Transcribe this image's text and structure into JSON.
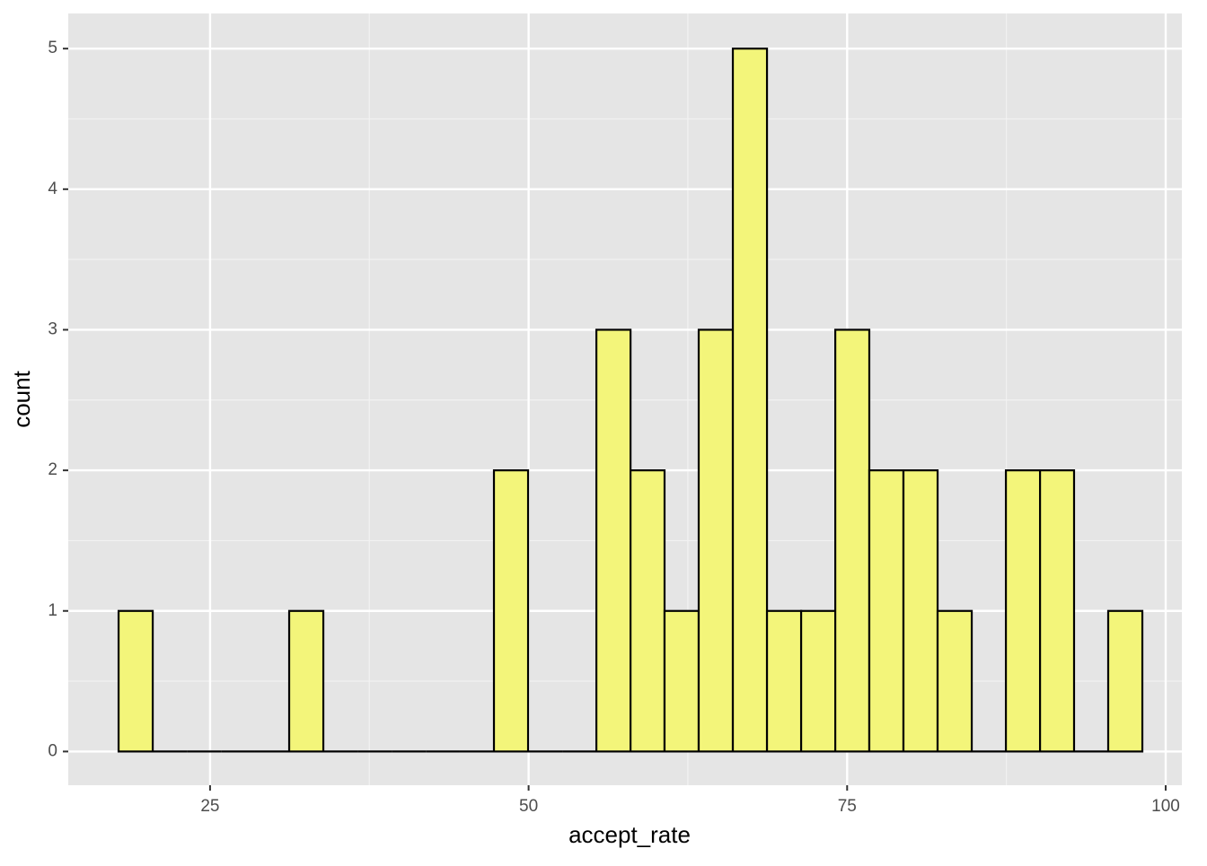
{
  "chart_data": {
    "type": "histogram",
    "x_label": "accept_rate",
    "y_label": "count",
    "bins": [
      17.82,
      20.5,
      23.18,
      25.86,
      28.53,
      31.21,
      33.89,
      36.57,
      39.25,
      41.93,
      44.6,
      47.28,
      49.96,
      52.64,
      55.32,
      58.0,
      60.67,
      63.35,
      66.03,
      68.71,
      71.39,
      74.07,
      76.74,
      79.42,
      82.1,
      84.78,
      87.46,
      90.14,
      92.81,
      95.49,
      98.17
    ],
    "values": [
      1,
      0,
      0,
      0,
      0,
      1,
      0,
      0,
      0,
      0,
      0,
      2,
      0,
      0,
      3,
      2,
      1,
      3,
      5,
      1,
      1,
      3,
      2,
      2,
      1,
      0,
      2,
      2,
      0,
      1
    ],
    "color": "#f3f57a",
    "edge_color": "#000000",
    "xlim": [
      13.87,
      101.27
    ],
    "xticks": [
      25,
      50,
      75,
      100
    ],
    "ylim": [
      -0.24,
      5.25
    ],
    "yticks": [
      0,
      1,
      2,
      3,
      4,
      5
    ],
    "grid": true
  }
}
